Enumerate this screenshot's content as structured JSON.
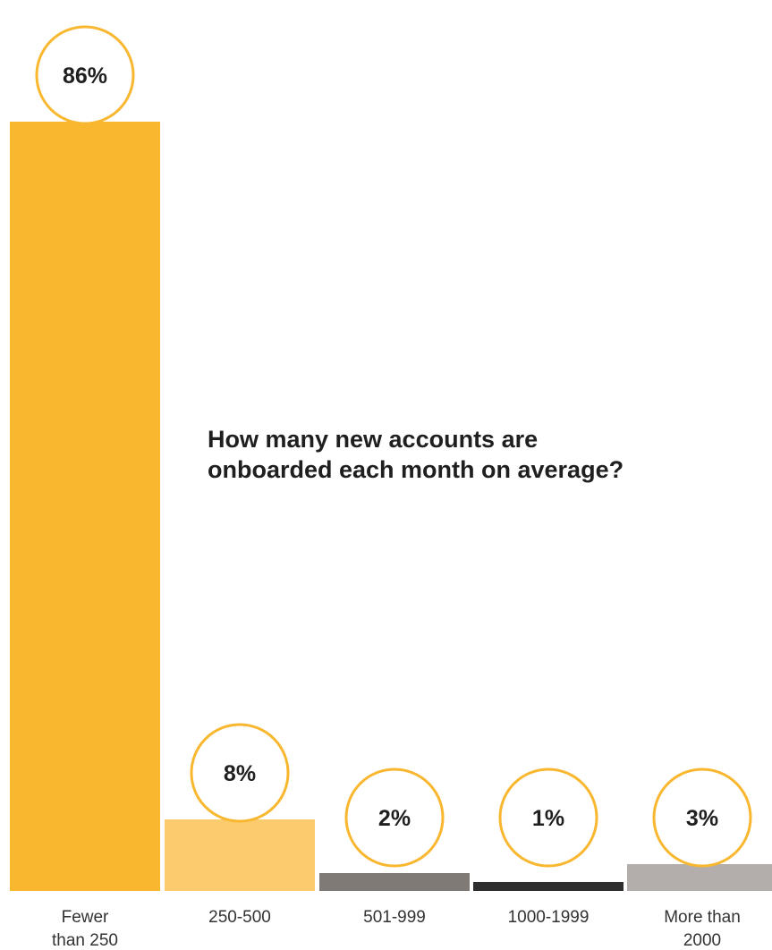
{
  "chart_data": {
    "type": "bar",
    "title": "How many new accounts are\nonboarded each month on average?",
    "xlabel": "",
    "ylabel": "",
    "ylim": [
      0,
      100
    ],
    "grid": false,
    "categories": [
      [
        "Fewer",
        "than 250"
      ],
      [
        "250-500"
      ],
      [
        "501-999"
      ],
      [
        "1000-1999"
      ],
      [
        "More than",
        "2000"
      ]
    ],
    "values": [
      86,
      8,
      2,
      1,
      3
    ],
    "data_labels": [
      "86%",
      "8%",
      "2%",
      "1%",
      "3%"
    ],
    "colors": [
      "#F8B72E",
      "#FBCB6E",
      "#7F7A75",
      "#2E2E2E",
      "#B3AEAC"
    ],
    "label_circle_color": "#F8B72E"
  }
}
